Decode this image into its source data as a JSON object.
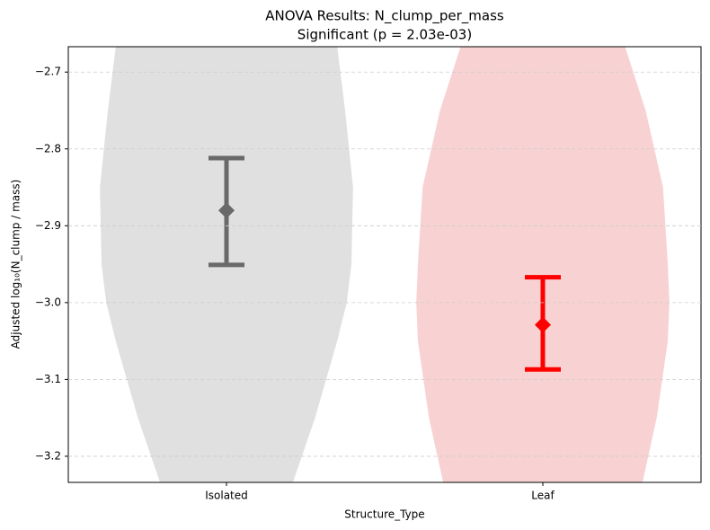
{
  "chart_data": {
    "type": "violin",
    "title": "ANOVA Results: N_clump_per_mass",
    "subtitle": "Significant (p = 2.03e-03)",
    "x_label": "Structure_Type",
    "y_label": "Adjusted log₁₀(N_clump / mass)",
    "categories": [
      "Isolated",
      "Leaf"
    ],
    "ylim": [
      -3.234,
      -2.667
    ],
    "yticks": [
      {
        "value": -2.7,
        "label": "−2.7"
      },
      {
        "value": -2.8,
        "label": "−2.8"
      },
      {
        "value": -2.9,
        "label": "−2.9"
      },
      {
        "value": -3.0,
        "label": "−3.0"
      },
      {
        "value": -3.1,
        "label": "−3.1"
      },
      {
        "value": -3.2,
        "label": "−3.2"
      }
    ],
    "grid": true,
    "groups": [
      {
        "violin_color": "#e0e0e0",
        "color": "#696969",
        "mean": -2.88,
        "ci": [
          -2.951,
          -2.812
        ],
        "violin_y": [
          -2.667,
          -2.75,
          -2.85,
          -2.95,
          -3.0,
          -3.05,
          -3.15,
          -3.234
        ],
        "violin_half_width": [
          0.35,
          0.375,
          0.4,
          0.395,
          0.38,
          0.35,
          0.28,
          0.21
        ]
      },
      {
        "violin_color": "#f8d2d2",
        "color": "#ff0000",
        "mean": -3.029,
        "ci": [
          -3.087,
          -2.967
        ],
        "violin_y": [
          -2.667,
          -2.75,
          -2.85,
          -2.95,
          -3.0,
          -3.05,
          -3.15,
          -3.234
        ],
        "violin_half_width": [
          0.26,
          0.325,
          0.38,
          0.395,
          0.4,
          0.395,
          0.36,
          0.315
        ]
      }
    ]
  }
}
